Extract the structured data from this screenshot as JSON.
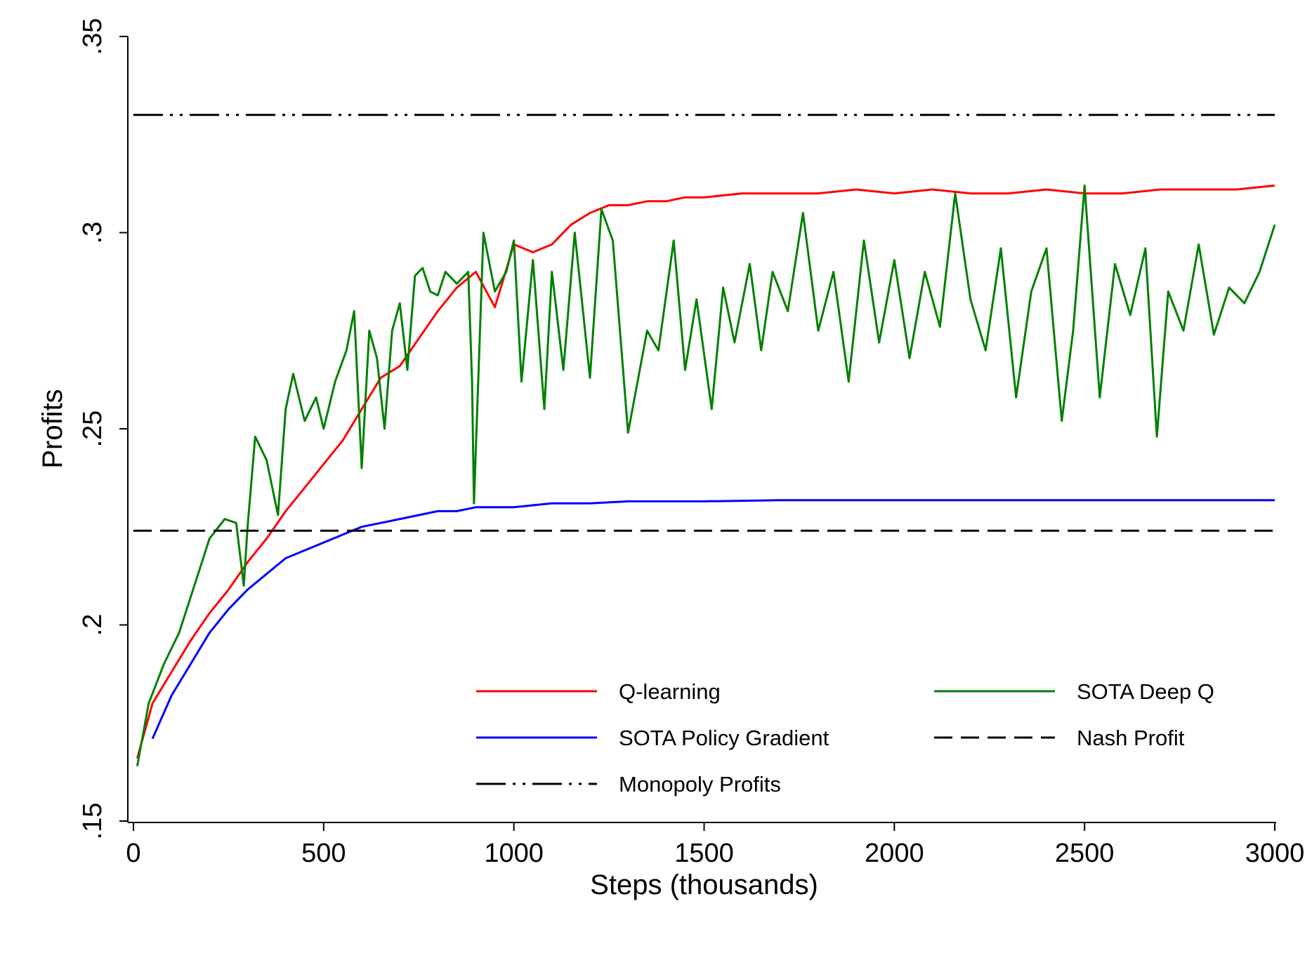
{
  "chart_data": {
    "type": "line",
    "xlabel": "Steps (thousands)",
    "ylabel": "Profits",
    "xlim": [
      0,
      3000
    ],
    "ylim": [
      0.15,
      0.35
    ],
    "xticks": [
      0,
      500,
      1000,
      1500,
      2000,
      2500,
      3000
    ],
    "xtick_labels": [
      "0",
      "500",
      "1000",
      "1500",
      "2000",
      "2500",
      "3000"
    ],
    "yticks": [
      0.15,
      0.2,
      0.25,
      0.3,
      0.35
    ],
    "ytick_labels": [
      ".15",
      ".2",
      ".25",
      ".3",
      ".35"
    ],
    "grid": false,
    "legend_position": "bottom-right",
    "series": [
      {
        "name": "Q-learning",
        "color": "#ff0000",
        "style": "solid",
        "x": [
          10,
          50,
          100,
          150,
          200,
          250,
          300,
          350,
          400,
          450,
          500,
          550,
          600,
          650,
          700,
          750,
          800,
          850,
          900,
          950,
          1000,
          1050,
          1100,
          1150,
          1200,
          1250,
          1300,
          1350,
          1400,
          1450,
          1500,
          1600,
          1700,
          1800,
          1900,
          2000,
          2100,
          2200,
          2300,
          2400,
          2500,
          2600,
          2700,
          2800,
          2900,
          3000
        ],
        "y": [
          0.166,
          0.18,
          0.188,
          0.196,
          0.203,
          0.209,
          0.216,
          0.222,
          0.229,
          0.235,
          0.241,
          0.247,
          0.255,
          0.263,
          0.266,
          0.273,
          0.28,
          0.286,
          0.29,
          0.281,
          0.297,
          0.295,
          0.297,
          0.302,
          0.305,
          0.307,
          0.307,
          0.308,
          0.308,
          0.309,
          0.309,
          0.31,
          0.31,
          0.31,
          0.311,
          0.31,
          0.311,
          0.31,
          0.31,
          0.311,
          0.31,
          0.31,
          0.311,
          0.311,
          0.311,
          0.312
        ]
      },
      {
        "name": "SOTA Policy Gradient",
        "color": "#0000ff",
        "style": "solid",
        "x": [
          50,
          100,
          150,
          200,
          250,
          300,
          350,
          400,
          450,
          500,
          550,
          600,
          650,
          700,
          750,
          800,
          850,
          900,
          950,
          1000,
          1100,
          1200,
          1300,
          1400,
          1500,
          1700,
          2000,
          2500,
          3000
        ],
        "y": [
          0.171,
          0.182,
          0.19,
          0.198,
          0.204,
          0.209,
          0.213,
          0.217,
          0.219,
          0.221,
          0.223,
          0.225,
          0.226,
          0.227,
          0.228,
          0.229,
          0.229,
          0.23,
          0.23,
          0.23,
          0.231,
          0.231,
          0.2315,
          0.2315,
          0.2315,
          0.2318,
          0.2318,
          0.2318,
          0.2318
        ]
      },
      {
        "name": "SOTA Deep Q",
        "color": "#008000",
        "style": "solid",
        "x": [
          10,
          40,
          80,
          120,
          160,
          200,
          240,
          270,
          290,
          300,
          320,
          350,
          380,
          400,
          420,
          450,
          480,
          500,
          530,
          560,
          580,
          600,
          620,
          640,
          660,
          680,
          700,
          720,
          740,
          760,
          780,
          800,
          820,
          850,
          880,
          890,
          895,
          920,
          950,
          980,
          1000,
          1020,
          1050,
          1080,
          1100,
          1130,
          1160,
          1200,
          1230,
          1260,
          1300,
          1350,
          1380,
          1420,
          1450,
          1480,
          1520,
          1550,
          1580,
          1620,
          1650,
          1680,
          1720,
          1760,
          1800,
          1840,
          1880,
          1920,
          1960,
          2000,
          2040,
          2080,
          2120,
          2160,
          2200,
          2240,
          2280,
          2320,
          2360,
          2400,
          2440,
          2470,
          2500,
          2540,
          2580,
          2620,
          2660,
          2690,
          2720,
          2760,
          2800,
          2840,
          2880,
          2920,
          2960,
          3000
        ],
        "y": [
          0.164,
          0.18,
          0.19,
          0.198,
          0.21,
          0.222,
          0.227,
          0.226,
          0.21,
          0.225,
          0.248,
          0.242,
          0.228,
          0.255,
          0.264,
          0.252,
          0.258,
          0.25,
          0.262,
          0.27,
          0.28,
          0.24,
          0.275,
          0.268,
          0.25,
          0.275,
          0.282,
          0.265,
          0.289,
          0.291,
          0.285,
          0.284,
          0.29,
          0.287,
          0.29,
          0.262,
          0.231,
          0.3,
          0.285,
          0.29,
          0.298,
          0.262,
          0.293,
          0.255,
          0.29,
          0.265,
          0.3,
          0.263,
          0.306,
          0.298,
          0.249,
          0.275,
          0.27,
          0.298,
          0.265,
          0.283,
          0.255,
          0.286,
          0.272,
          0.292,
          0.27,
          0.29,
          0.28,
          0.305,
          0.275,
          0.29,
          0.262,
          0.298,
          0.272,
          0.293,
          0.268,
          0.29,
          0.276,
          0.31,
          0.283,
          0.27,
          0.296,
          0.258,
          0.285,
          0.296,
          0.252,
          0.275,
          0.312,
          0.258,
          0.292,
          0.279,
          0.296,
          0.248,
          0.285,
          0.275,
          0.297,
          0.274,
          0.286,
          0.282,
          0.29,
          0.302
        ]
      },
      {
        "name": "Nash Profit",
        "color": "#000000",
        "style": "dash",
        "x": [
          0,
          3000
        ],
        "y": [
          0.224,
          0.224
        ]
      },
      {
        "name": "Monopoly Profits",
        "color": "#000000",
        "style": "dashdot",
        "x": [
          0,
          3000
        ],
        "y": [
          0.33,
          0.33
        ]
      }
    ],
    "legend": [
      {
        "label": "Q-learning",
        "series": "Q-learning"
      },
      {
        "label": "SOTA Deep Q",
        "series": "SOTA Deep Q"
      },
      {
        "label": "SOTA Policy Gradient",
        "series": "SOTA Policy Gradient"
      },
      {
        "label": "Nash Profit",
        "series": "Nash Profit"
      },
      {
        "label": "Monopoly Profits",
        "series": "Monopoly Profits"
      }
    ]
  }
}
